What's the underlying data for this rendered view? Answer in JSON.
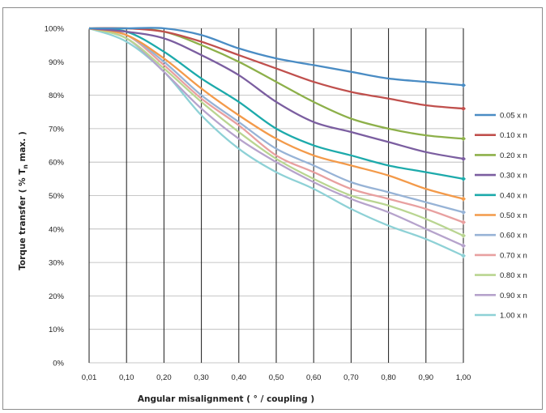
{
  "chart_data": {
    "type": "line",
    "title": "",
    "xlabel": "Angular misalignment ( ° / coupling )",
    "ylabel_main": "Torque transfer ( % T",
    "ylabel_sub": "n",
    "ylabel_tail": " max. )",
    "x": [
      "0,01",
      "0,10",
      "0,20",
      "0,30",
      "0,40",
      "0,50",
      "0,60",
      "0,70",
      "0,80",
      "0,90",
      "1,00"
    ],
    "yticks": [
      "0%",
      "10%",
      "20%",
      "30%",
      "40%",
      "50%",
      "60%",
      "70%",
      "80%",
      "90%",
      "100%"
    ],
    "ylim": [
      0,
      100
    ],
    "grid": "vertical",
    "legend_position": "right",
    "series": [
      {
        "name": "0.05 x n",
        "color": "#4a8cc4",
        "values": [
          100,
          100,
          100,
          98,
          94,
          91,
          89,
          87,
          85,
          84,
          83
        ]
      },
      {
        "name": "0.10 x n",
        "color": "#c0504d",
        "values": [
          100,
          100,
          99,
          96,
          92,
          88,
          84,
          81,
          79,
          77,
          76
        ]
      },
      {
        "name": "0.20 x n",
        "color": "#8db04a",
        "values": [
          100,
          100,
          99,
          95,
          90,
          84,
          78,
          73,
          70,
          68,
          67
        ]
      },
      {
        "name": "0.30 x n",
        "color": "#7b5ea0",
        "values": [
          100,
          99,
          97,
          92,
          86,
          78,
          72,
          69,
          66,
          63,
          61
        ]
      },
      {
        "name": "0.40 x n",
        "color": "#1daaab",
        "values": [
          100,
          99,
          93,
          85,
          78,
          70,
          65,
          62,
          59,
          57,
          55
        ]
      },
      {
        "name": "0.50 x n",
        "color": "#f39a4a",
        "values": [
          100,
          98,
          91,
          82,
          74,
          67,
          62,
          59,
          56,
          52,
          49
        ]
      },
      {
        "name": "0.60 x n",
        "color": "#97b3d6",
        "values": [
          100,
          98,
          90,
          80,
          72,
          64,
          59,
          54,
          51,
          48,
          45
        ]
      },
      {
        "name": "0.70 x n",
        "color": "#e8a0a0",
        "values": [
          100,
          98,
          89,
          79,
          71,
          62,
          57,
          52,
          49,
          46,
          42
        ]
      },
      {
        "name": "0.80 x n",
        "color": "#b9d591",
        "values": [
          100,
          97,
          88,
          78,
          69,
          61,
          55,
          50,
          47,
          43,
          38
        ]
      },
      {
        "name": "0.90 x n",
        "color": "#b6a3cc",
        "values": [
          100,
          97,
          87,
          76,
          67,
          60,
          54,
          49,
          45,
          40,
          35
        ]
      },
      {
        "name": "1.00 x n",
        "color": "#8ed1d6",
        "values": [
          100,
          96,
          87,
          74,
          64,
          57,
          52,
          46,
          41,
          37,
          32
        ]
      }
    ]
  }
}
